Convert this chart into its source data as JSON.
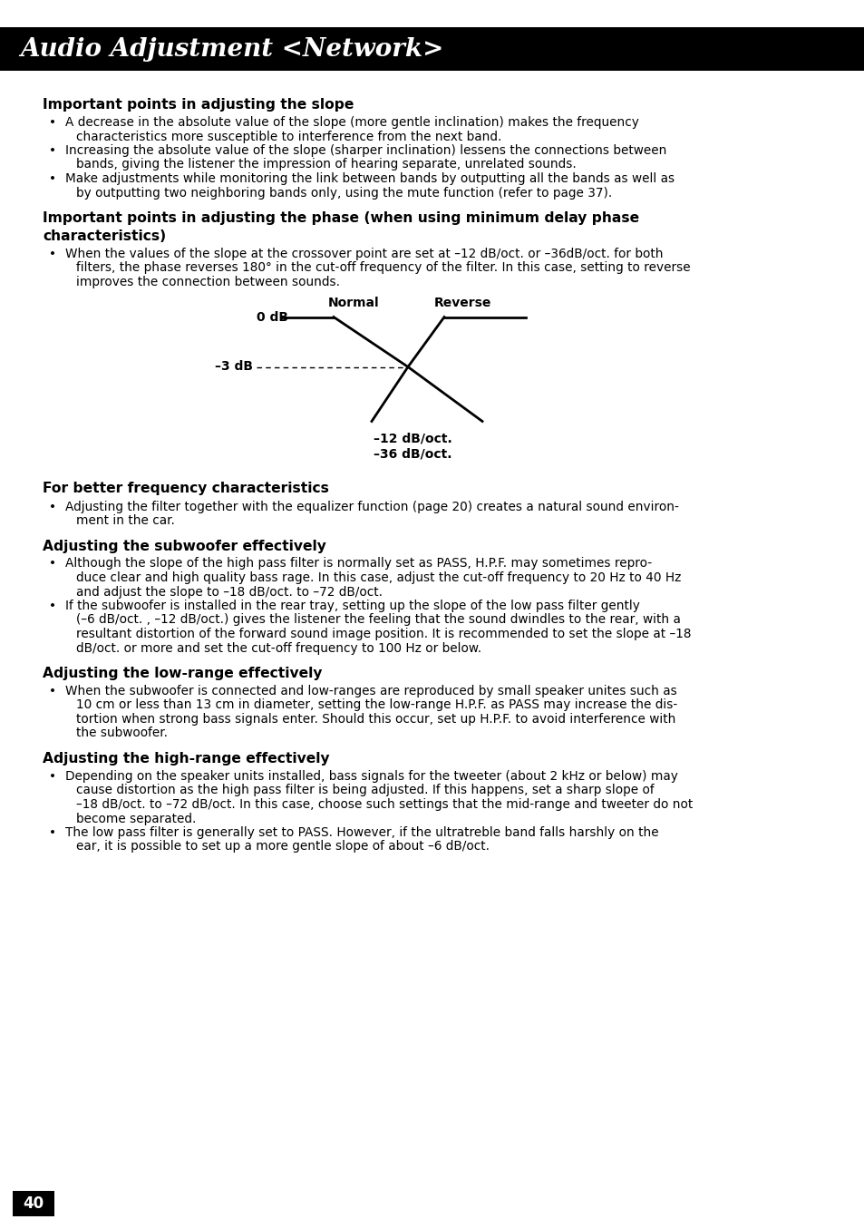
{
  "title": "Audio Adjustment <Network>",
  "title_bg": "#000000",
  "title_color": "#ffffff",
  "page_number": "40",
  "background_color": "#ffffff",
  "sections": [
    {
      "heading": "Important points in adjusting the slope",
      "bullets": [
        [
          "A decrease in the absolute value of the slope (more gentle inclination) makes the frequency",
          "characteristics more susceptible to interference from the next band."
        ],
        [
          "Increasing the absolute value of the slope (sharper inclination) lessens the connections between",
          "bands, giving the listener the impression of hearing separate, unrelated sounds."
        ],
        [
          "Make adjustments while monitoring the link between bands by outputting all the bands as well as",
          "by outputting two neighboring bands only, using the mute function (refer to page 37)."
        ]
      ]
    },
    {
      "heading": [
        "Important points in adjusting the phase (when using minimum delay phase",
        "characteristics)"
      ],
      "bullets": [
        [
          "When the values of the slope at the crossover point are set at –12 dB/oct. or –36dB/oct. for both",
          "filters, the phase reverses 180° in the cut-off frequency of the filter. In this case, setting to reverse",
          "improves the connection between sounds."
        ]
      ],
      "has_diagram": true
    },
    {
      "heading": "For better frequency characteristics",
      "bullets": [
        [
          "Adjusting the filter together with the equalizer function (page 20) creates a natural sound environ-",
          "ment in the car."
        ]
      ]
    },
    {
      "heading": "Adjusting the subwoofer effectively",
      "bullets": [
        [
          "Although the slope of the high pass filter is normally set as PASS, H.P.F. may sometimes repro-",
          "duce clear and high quality bass rage. In this case, adjust the cut-off frequency to 20 Hz to 40 Hz",
          "and adjust the slope to –18 dB/oct. to –72 dB/oct."
        ],
        [
          "If the subwoofer is installed in the rear tray, setting up the slope of the low pass filter gently",
          "(–6 dB/oct. , –12 dB/oct.) gives the listener the feeling that the sound dwindles to the rear, with a",
          "resultant distortion of the forward sound image position. It is recommended to set the slope at –18",
          "dB/oct. or more and set the cut-off frequency to 100 Hz or below."
        ]
      ]
    },
    {
      "heading": "Adjusting the low-range effectively",
      "bullets": [
        [
          "When the subwoofer is connected and low-ranges are reproduced by small speaker unites such as",
          "10 cm or less than 13 cm in diameter, setting the low-range H.P.F. as PASS may increase the dis-",
          "tortion when strong bass signals enter. Should this occur, set up H.P.F. to avoid interference with",
          "the subwoofer."
        ]
      ]
    },
    {
      "heading": "Adjusting the high-range effectively",
      "bullets": [
        [
          "Depending on the speaker units installed, bass signals for the tweeter (about 2 kHz or below) may",
          "cause distortion as the high pass filter is being adjusted. If this happens, set a sharp slope of",
          "–18 dB/oct. to –72 dB/oct. In this case, choose such settings that the mid-range and tweeter do not",
          "become separated."
        ],
        [
          "The low pass filter is generally set to PASS. However, if the ultratreble band falls harshly on the",
          "ear, it is possible to set up a more gentle slope of about –6 dB/oct."
        ]
      ]
    }
  ]
}
